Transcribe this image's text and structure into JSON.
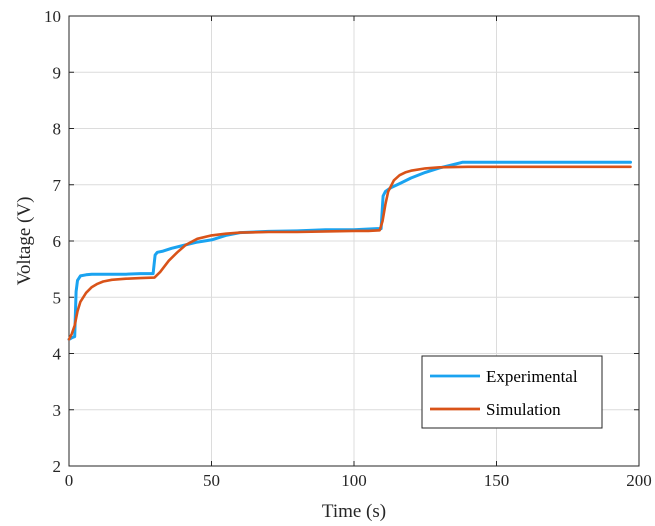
{
  "chart_data": {
    "type": "line",
    "xlabel": "Time (s)",
    "ylabel": "Voltage (V)",
    "xlim": [
      0,
      200
    ],
    "ylim": [
      2,
      10
    ],
    "xticks": [
      0,
      50,
      100,
      150,
      200
    ],
    "yticks": [
      2,
      3,
      4,
      5,
      6,
      7,
      8,
      9,
      10
    ],
    "grid": true,
    "legend": "bottom-right",
    "series": [
      {
        "name": "Experimental",
        "color": "#1AA3F0",
        "x": [
          0,
          1,
          2,
          2.5,
          3,
          4,
          6,
          8,
          10,
          15,
          20,
          25,
          29.5,
          30.2,
          31,
          33,
          36,
          40,
          45,
          50,
          55,
          60,
          70,
          80,
          90,
          100,
          108,
          109.5,
          110.2,
          111,
          113,
          116,
          120,
          125,
          130,
          135,
          138,
          145,
          160,
          180,
          197
        ],
        "y": [
          4.25,
          4.28,
          4.3,
          5.1,
          5.3,
          5.38,
          5.4,
          5.41,
          5.41,
          5.41,
          5.41,
          5.42,
          5.42,
          5.75,
          5.8,
          5.82,
          5.87,
          5.92,
          5.98,
          6.02,
          6.1,
          6.15,
          6.17,
          6.18,
          6.2,
          6.2,
          6.22,
          6.22,
          6.8,
          6.88,
          6.95,
          7.02,
          7.12,
          7.22,
          7.3,
          7.36,
          7.4,
          7.4,
          7.4,
          7.4,
          7.4
        ]
      },
      {
        "name": "Simulation",
        "color": "#D95319",
        "x": [
          0,
          1,
          2,
          3,
          4,
          6,
          8,
          10,
          12,
          15,
          20,
          25,
          30,
          32,
          35,
          38,
          41,
          45,
          50,
          55,
          60,
          70,
          80,
          90,
          100,
          105,
          109,
          110,
          111,
          112,
          114,
          116,
          118,
          120,
          125,
          130,
          140,
          160,
          180,
          197
        ],
        "y": [
          4.25,
          4.35,
          4.5,
          4.75,
          4.92,
          5.08,
          5.18,
          5.24,
          5.28,
          5.31,
          5.33,
          5.34,
          5.35,
          5.45,
          5.65,
          5.8,
          5.93,
          6.04,
          6.1,
          6.13,
          6.15,
          6.16,
          6.16,
          6.17,
          6.18,
          6.18,
          6.19,
          6.35,
          6.65,
          6.88,
          7.08,
          7.17,
          7.22,
          7.25,
          7.29,
          7.31,
          7.32,
          7.32,
          7.32,
          7.32
        ]
      }
    ]
  }
}
